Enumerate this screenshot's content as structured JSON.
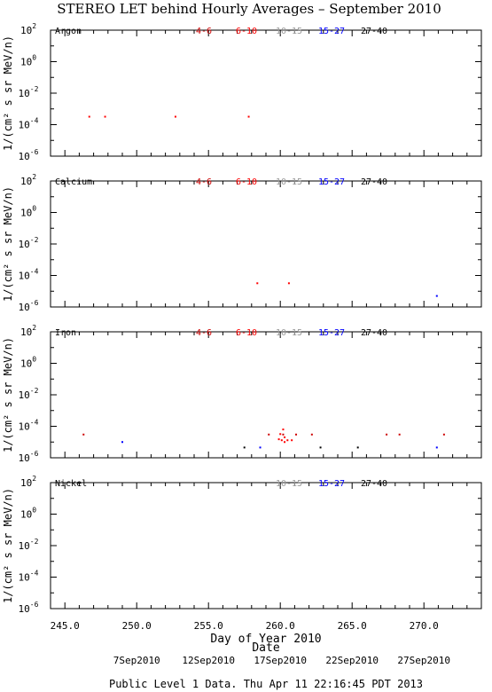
{
  "title": "STEREO LET behind Hourly Averages – September 2010",
  "ylabel": "1/(cm² s sr MeV/n)",
  "xlabel": "Day of Year 2010",
  "date_label": "Date",
  "footer": "Public Level 1 Data. Thu Apr 11 22:16:45 PDT 2013",
  "x_ticks": [
    "245.0",
    "250.0",
    "255.0",
    "260.0",
    "265.0",
    "270.0"
  ],
  "date_ticks": [
    "7Sep2010",
    "12Sep2010",
    "17Sep2010",
    "22Sep2010",
    "27Sep2010"
  ],
  "colors": {
    "4-6": "#cc0000",
    "6-10": "#ff0000",
    "10-15": "#999999",
    "15-27": "#0000ff",
    "27-40": "#000000"
  },
  "chart_data": [
    {
      "type": "scatter",
      "element": "Argon",
      "legend": [
        "4-6",
        "6-10",
        "10-15",
        "15-27",
        "27-40"
      ],
      "xlim": [
        244,
        274
      ],
      "ylim": [
        1e-06,
        100
      ],
      "yscale": "log",
      "y_ticks": [
        [
          "10",
          "2"
        ],
        [
          "10",
          "0"
        ],
        [
          "10",
          "-2"
        ],
        [
          "10",
          "-4"
        ],
        [
          "10",
          "-6"
        ]
      ],
      "series": [
        {
          "name": "6-10",
          "color": "#ff0000",
          "points": [
            [
              246.7,
              0.00032
            ],
            [
              247.8,
              0.00032
            ],
            [
              252.7,
              0.00032
            ],
            [
              257.8,
              0.00032
            ]
          ]
        }
      ]
    },
    {
      "type": "scatter",
      "element": "Calcium",
      "legend": [
        "4-6",
        "6-10",
        "10-15",
        "15-27",
        "27-40"
      ],
      "xlim": [
        244,
        274
      ],
      "ylim": [
        1e-06,
        100
      ],
      "yscale": "log",
      "y_ticks": [
        [
          "10",
          "2"
        ],
        [
          "10",
          "0"
        ],
        [
          "10",
          "-2"
        ],
        [
          "10",
          "-4"
        ],
        [
          "10",
          "-6"
        ]
      ],
      "series": [
        {
          "name": "6-10",
          "color": "#ff0000",
          "points": [
            [
              258.4,
              3.2e-05
            ],
            [
              260.6,
              3.2e-05
            ]
          ]
        },
        {
          "name": "15-27",
          "color": "#0000ff",
          "points": [
            [
              270.9,
              5e-06
            ]
          ]
        }
      ]
    },
    {
      "type": "scatter",
      "element": "Iron",
      "legend": [
        "4-6",
        "6-10",
        "10-15",
        "15-27",
        "27-40"
      ],
      "xlim": [
        244,
        274
      ],
      "ylim": [
        1e-06,
        100
      ],
      "yscale": "log",
      "y_ticks": [
        [
          "10",
          "2"
        ],
        [
          "10",
          "0"
        ],
        [
          "10",
          "-2"
        ],
        [
          "10",
          "-4"
        ],
        [
          "10",
          "-6"
        ]
      ],
      "series": [
        {
          "name": "4-6",
          "color": "#cc0000",
          "points": [
            [
              246.3,
              3e-05
            ],
            [
              259.2,
              3e-05
            ],
            [
              260.2,
              3e-05
            ],
            [
              261.1,
              3e-05
            ],
            [
              262.2,
              3e-05
            ],
            [
              267.4,
              3e-05
            ],
            [
              268.3,
              3e-05
            ],
            [
              271.4,
              3e-05
            ]
          ]
        },
        {
          "name": "6-10",
          "color": "#ff0000",
          "points": [
            [
              260.0,
              3.2e-05
            ],
            [
              260.2,
              6.3e-05
            ],
            [
              260.3,
              2e-05
            ],
            [
              260.1,
              1.3e-05
            ],
            [
              260.3,
              1e-05
            ],
            [
              260.5,
              1.3e-05
            ],
            [
              260.8,
              1.3e-05
            ],
            [
              259.9,
              1.5e-05
            ]
          ]
        },
        {
          "name": "15-27",
          "color": "#0000ff",
          "points": [
            [
              249.0,
              1e-05
            ],
            [
              258.6,
              4.5e-06
            ],
            [
              270.9,
              4.5e-06
            ]
          ]
        },
        {
          "name": "27-40",
          "color": "#000000",
          "points": [
            [
              257.5,
              4.5e-06
            ],
            [
              262.8,
              4.5e-06
            ],
            [
              265.4,
              4.5e-06
            ]
          ]
        }
      ]
    },
    {
      "type": "scatter",
      "element": "Nickel",
      "legend": [
        "10-15",
        "15-27",
        "27-40"
      ],
      "xlim": [
        244,
        274
      ],
      "ylim": [
        1e-06,
        100
      ],
      "yscale": "log",
      "y_ticks": [
        [
          "10",
          "2"
        ],
        [
          "10",
          "0"
        ],
        [
          "10",
          "-2"
        ],
        [
          "10",
          "-4"
        ],
        [
          "10",
          "-6"
        ]
      ],
      "series": []
    }
  ]
}
